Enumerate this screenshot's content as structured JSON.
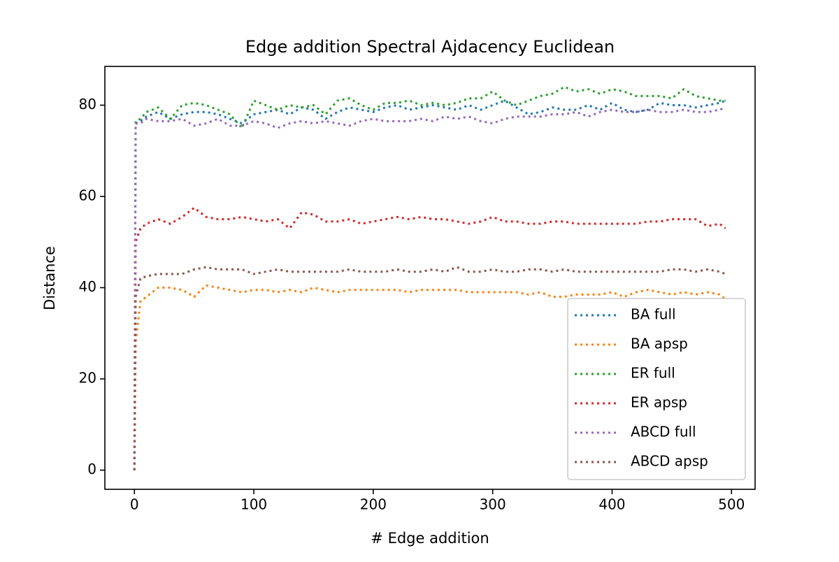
{
  "chart_data": {
    "type": "line",
    "title": "Edge addition Spectral Ajdacency Euclidean",
    "x_label": "# Edge addition",
    "y_label": "Distance",
    "x": [
      0,
      1,
      5,
      10,
      20,
      30,
      40,
      50,
      60,
      70,
      80,
      90,
      100,
      110,
      120,
      130,
      140,
      150,
      160,
      170,
      180,
      190,
      200,
      210,
      220,
      230,
      240,
      250,
      260,
      270,
      280,
      290,
      300,
      310,
      320,
      330,
      340,
      350,
      360,
      370,
      380,
      390,
      400,
      410,
      420,
      430,
      440,
      450,
      460,
      470,
      480,
      490,
      495
    ],
    "series": [
      {
        "name": "BA full",
        "color": "#1f77b4",
        "values": [
          0,
          76,
          76.5,
          77.5,
          78.5,
          77,
          78,
          78.5,
          78.5,
          78,
          77,
          76,
          78,
          78.5,
          79,
          78,
          79.5,
          79,
          77,
          78.5,
          79.5,
          79,
          78.5,
          79.5,
          80,
          79,
          79.5,
          80,
          79.5,
          79,
          80,
          79,
          80,
          81,
          79.5,
          78,
          78.5,
          79.5,
          79,
          79,
          80,
          79,
          80.5,
          79,
          78.5,
          79,
          80.5,
          80,
          80,
          79.5,
          80,
          80.5,
          81
        ]
      },
      {
        "name": "BA apsp",
        "color": "#ff7f0e",
        "values": [
          0,
          28,
          37,
          38,
          40,
          40,
          39.5,
          38,
          40.5,
          40,
          39.5,
          39,
          39.5,
          39.5,
          39,
          39.5,
          39,
          40,
          39.5,
          39,
          39.5,
          39.5,
          39.5,
          39.5,
          39.5,
          39,
          39.5,
          39.5,
          39.5,
          39.5,
          39,
          39,
          39,
          39,
          39,
          38.5,
          39,
          38,
          38,
          38.5,
          38.5,
          38.5,
          39,
          38,
          39,
          39.5,
          39,
          38.5,
          39,
          38.5,
          39,
          38.5,
          37.5
        ]
      },
      {
        "name": "ER full",
        "color": "#2ca02c",
        "values": [
          0,
          76.5,
          77,
          78.5,
          79.5,
          77,
          80,
          80.5,
          80,
          79,
          78,
          75,
          81,
          80,
          79,
          80,
          79.5,
          80,
          78,
          81,
          81.5,
          80,
          79,
          80.5,
          80.5,
          81,
          80,
          80.5,
          80,
          80.5,
          81.5,
          81.5,
          83,
          81,
          80,
          81,
          82,
          82.5,
          84,
          83,
          83.5,
          82.5,
          83.5,
          83,
          82,
          82,
          82,
          81.5,
          83.5,
          82,
          81.5,
          81,
          81
        ]
      },
      {
        "name": "ER apsp",
        "color": "#d62728",
        "values": [
          0,
          50,
          53,
          54,
          55,
          54,
          55.5,
          57.5,
          55.5,
          55,
          55,
          55.5,
          55,
          54.5,
          55,
          53,
          56.5,
          56,
          54.5,
          54.5,
          55,
          54,
          54.5,
          55,
          55.5,
          55,
          55.5,
          55,
          55,
          54.5,
          54,
          54.5,
          55.5,
          54.5,
          54.5,
          54,
          54,
          54.5,
          54.5,
          54,
          54,
          54,
          54,
          54,
          54,
          54.5,
          54.5,
          55,
          55,
          55,
          53.5,
          54,
          53
        ]
      },
      {
        "name": "ABCD full",
        "color": "#9467bd",
        "values": [
          0,
          76,
          76,
          77,
          76.5,
          76.5,
          77,
          75.5,
          76,
          77,
          75.5,
          75.5,
          76.5,
          76,
          75,
          76,
          76.5,
          76,
          76.5,
          76,
          75.5,
          76.5,
          77,
          76.5,
          76.5,
          76.5,
          77,
          76.5,
          77.5,
          77,
          77.5,
          76.5,
          76,
          77,
          77.5,
          77.5,
          77.5,
          78,
          78,
          78.5,
          77.5,
          78.5,
          79,
          78.5,
          78.5,
          79,
          78.5,
          78.5,
          79,
          78.5,
          78.5,
          79,
          79.5
        ]
      },
      {
        "name": "ABCD apsp",
        "color": "#8c564b",
        "values": [
          0,
          38,
          42,
          42.5,
          43,
          43,
          43,
          44,
          44.5,
          44,
          44,
          44,
          43,
          43.5,
          44,
          43.5,
          43.5,
          43.5,
          43.5,
          43.5,
          44,
          43.5,
          43.5,
          43.5,
          44,
          43.5,
          43.5,
          44,
          43.5,
          44.5,
          43.5,
          43.5,
          44,
          43.5,
          43.5,
          44,
          44,
          43.5,
          44,
          43.5,
          43.5,
          43.5,
          43.5,
          43.5,
          43.5,
          43.5,
          43.5,
          44,
          44,
          43.5,
          44,
          43.5,
          43
        ]
      }
    ],
    "xlim": [
      -24.75,
      519.75
    ],
    "ylim": [
      -4.2,
      88.5
    ],
    "xticks": [
      0,
      100,
      200,
      300,
      400,
      500
    ],
    "yticks": [
      0,
      20,
      40,
      60,
      80
    ],
    "legend": "lower right",
    "grid": false
  }
}
